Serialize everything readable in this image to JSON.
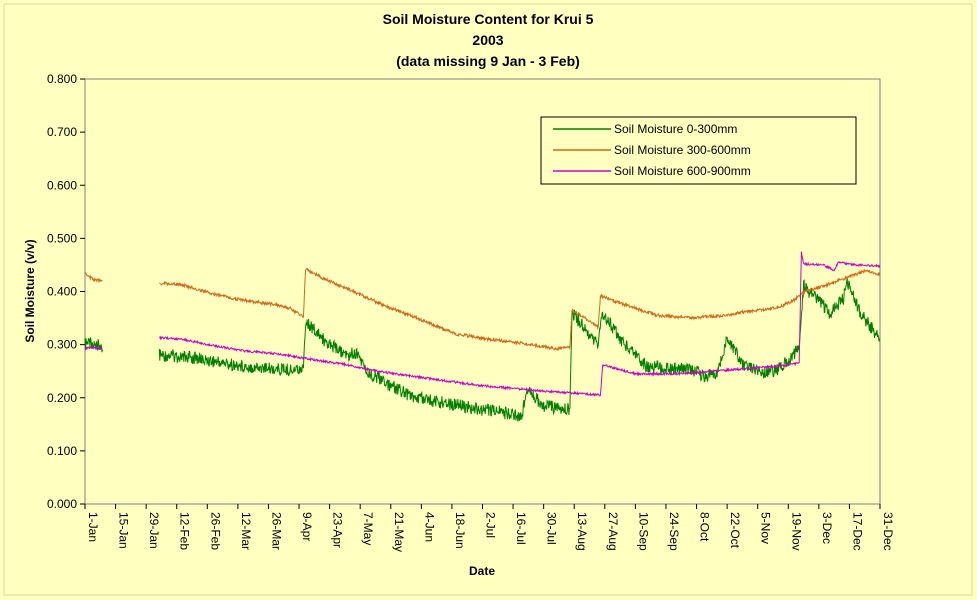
{
  "chart_data": {
    "type": "line",
    "title_lines": [
      "Soil Moisture Content for Krui 5",
      "2003",
      "(data missing 9 Jan - 3 Feb)"
    ],
    "xlabel": "Date",
    "ylabel": "Soil Moisture (v/v)",
    "x_ticks": [
      "1-Jan",
      "15-Jan",
      "29-Jan",
      "12-Feb",
      "26-Feb",
      "12-Mar",
      "26-Mar",
      "9-Apr",
      "23-Apr",
      "7-May",
      "21-May",
      "4-Jun",
      "18-Jun",
      "2-Jul",
      "16-Jul",
      "30-Jul",
      "13-Aug",
      "27-Aug",
      "10-Sep",
      "24-Sep",
      "8-Oct",
      "22-Oct",
      "5-Nov",
      "19-Nov",
      "3-Dec",
      "17-Dec",
      "31-Dec"
    ],
    "y_ticks": [
      "0.000",
      "0.100",
      "0.200",
      "0.300",
      "0.400",
      "0.500",
      "0.600",
      "0.700",
      "0.800"
    ],
    "xlim": [
      "2003-01-01",
      "2003-12-31"
    ],
    "ylim": [
      0,
      0.8
    ],
    "grid": false,
    "legend_position": "top-right",
    "series": [
      {
        "name": "Soil Moisture 0-300mm",
        "color": "#008000",
        "segments": [
          [
            [
              "2003-01-01",
              0.3
            ],
            [
              "2003-01-03",
              0.305
            ],
            [
              "2003-01-05",
              0.298
            ],
            [
              "2003-01-07",
              0.302
            ],
            [
              "2003-01-09",
              0.29
            ]
          ],
          [
            [
              "2003-02-04",
              0.28
            ],
            [
              "2003-02-15",
              0.278
            ],
            [
              "2003-02-25",
              0.272
            ],
            [
              "2003-03-10",
              0.262
            ],
            [
              "2003-03-25",
              0.255
            ],
            [
              "2003-04-07",
              0.252
            ],
            [
              "2003-04-11",
              0.26
            ],
            [
              "2003-04-12",
              0.345
            ],
            [
              "2003-04-20",
              0.31
            ],
            [
              "2003-04-30",
              0.28
            ],
            [
              "2003-05-05",
              0.285
            ],
            [
              "2003-05-10",
              0.25
            ],
            [
              "2003-05-20",
              0.225
            ],
            [
              "2003-06-01",
              0.2
            ],
            [
              "2003-06-15",
              0.19
            ],
            [
              "2003-07-01",
              0.178
            ],
            [
              "2003-07-15",
              0.17
            ],
            [
              "2003-07-20",
              0.165
            ],
            [
              "2003-07-22",
              0.215
            ],
            [
              "2003-07-30",
              0.185
            ],
            [
              "2003-08-09",
              0.178
            ],
            [
              "2003-08-11",
              0.18
            ],
            [
              "2003-08-12",
              0.36
            ],
            [
              "2003-08-20",
              0.32
            ],
            [
              "2003-08-24",
              0.3
            ],
            [
              "2003-08-26",
              0.36
            ],
            [
              "2003-09-05",
              0.3
            ],
            [
              "2003-09-15",
              0.26
            ],
            [
              "2003-09-25",
              0.255
            ],
            [
              "2003-10-05",
              0.255
            ],
            [
              "2003-10-12",
              0.24
            ],
            [
              "2003-10-18",
              0.25
            ],
            [
              "2003-10-22",
              0.31
            ],
            [
              "2003-10-30",
              0.26
            ],
            [
              "2003-11-08",
              0.245
            ],
            [
              "2003-11-15",
              0.255
            ],
            [
              "2003-11-20",
              0.275
            ],
            [
              "2003-11-24",
              0.295
            ],
            [
              "2003-11-26",
              0.41
            ],
            [
              "2003-12-01",
              0.39
            ],
            [
              "2003-12-08",
              0.36
            ],
            [
              "2003-12-14",
              0.385
            ],
            [
              "2003-12-16",
              0.415
            ],
            [
              "2003-12-22",
              0.36
            ],
            [
              "2003-12-31",
              0.31
            ]
          ]
        ]
      },
      {
        "name": "Soil Moisture 300-600mm",
        "color": "#d2691e",
        "segments": [
          [
            [
              "2003-01-01",
              0.437
            ],
            [
              "2003-01-03",
              0.428
            ],
            [
              "2003-01-05",
              0.422
            ],
            [
              "2003-01-09",
              0.42
            ]
          ],
          [
            [
              "2003-02-04",
              0.416
            ],
            [
              "2003-02-15",
              0.412
            ],
            [
              "2003-03-01",
              0.395
            ],
            [
              "2003-03-15",
              0.383
            ],
            [
              "2003-03-30",
              0.375
            ],
            [
              "2003-04-05",
              0.368
            ],
            [
              "2003-04-11",
              0.352
            ],
            [
              "2003-04-12",
              0.443
            ],
            [
              "2003-04-20",
              0.425
            ],
            [
              "2003-05-01",
              0.405
            ],
            [
              "2003-05-20",
              0.37
            ],
            [
              "2003-06-05",
              0.345
            ],
            [
              "2003-06-20",
              0.32
            ],
            [
              "2003-07-05",
              0.31
            ],
            [
              "2003-07-15",
              0.305
            ],
            [
              "2003-07-25",
              0.3
            ],
            [
              "2003-08-05",
              0.292
            ],
            [
              "2003-08-11",
              0.295
            ],
            [
              "2003-08-12",
              0.365
            ],
            [
              "2003-08-20",
              0.345
            ],
            [
              "2003-08-24",
              0.332
            ],
            [
              "2003-08-25",
              0.392
            ],
            [
              "2003-09-05",
              0.375
            ],
            [
              "2003-09-20",
              0.355
            ],
            [
              "2003-10-05",
              0.35
            ],
            [
              "2003-10-20",
              0.355
            ],
            [
              "2003-11-05",
              0.365
            ],
            [
              "2003-11-15",
              0.37
            ],
            [
              "2003-11-22",
              0.385
            ],
            [
              "2003-11-25",
              0.395
            ],
            [
              "2003-11-27",
              0.4
            ],
            [
              "2003-12-05",
              0.41
            ],
            [
              "2003-12-15",
              0.425
            ],
            [
              "2003-12-25",
              0.44
            ],
            [
              "2003-12-31",
              0.432
            ]
          ]
        ]
      },
      {
        "name": "Soil Moisture 600-900mm",
        "color": "#cc00cc",
        "segments": [
          [
            [
              "2003-01-01",
              0.293
            ],
            [
              "2003-01-05",
              0.295
            ],
            [
              "2003-01-09",
              0.292
            ]
          ],
          [
            [
              "2003-02-04",
              0.313
            ],
            [
              "2003-02-15",
              0.31
            ],
            [
              "2003-03-01",
              0.298
            ],
            [
              "2003-03-15",
              0.288
            ],
            [
              "2003-04-01",
              0.282
            ],
            [
              "2003-04-15",
              0.272
            ],
            [
              "2003-05-01",
              0.262
            ],
            [
              "2003-05-15",
              0.25
            ],
            [
              "2003-06-01",
              0.24
            ],
            [
              "2003-06-15",
              0.232
            ],
            [
              "2003-07-01",
              0.223
            ],
            [
              "2003-07-15",
              0.218
            ],
            [
              "2003-08-01",
              0.212
            ],
            [
              "2003-08-15",
              0.208
            ],
            [
              "2003-08-25",
              0.205
            ],
            [
              "2003-08-26",
              0.262
            ],
            [
              "2003-09-10",
              0.245
            ],
            [
              "2003-10-01",
              0.245
            ],
            [
              "2003-10-15",
              0.25
            ],
            [
              "2003-11-01",
              0.255
            ],
            [
              "2003-11-15",
              0.26
            ],
            [
              "2003-11-24",
              0.265
            ],
            [
              "2003-11-25",
              0.475
            ],
            [
              "2003-11-26",
              0.452
            ],
            [
              "2003-12-05",
              0.45
            ],
            [
              "2003-12-10",
              0.44
            ],
            [
              "2003-12-12",
              0.455
            ],
            [
              "2003-12-20",
              0.45
            ],
            [
              "2003-12-31",
              0.448
            ]
          ]
        ]
      }
    ]
  }
}
